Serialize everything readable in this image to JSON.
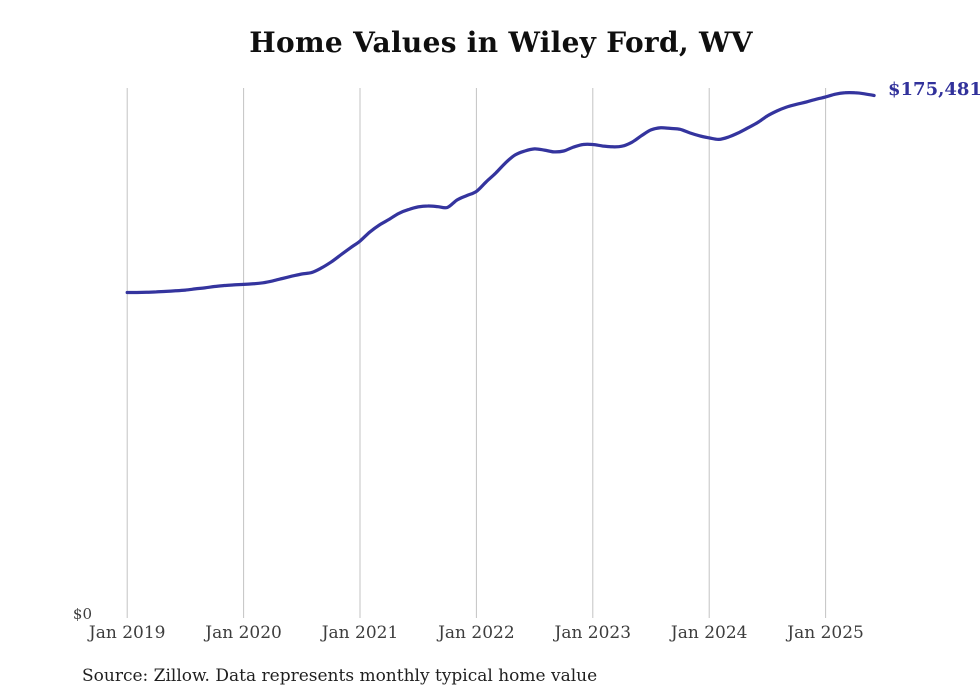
{
  "title": "Home Values in Wiley Ford, WV",
  "end_label": "$175,481",
  "y_axis": {
    "zero_label": "$0"
  },
  "source_note": "Source: Zillow. Data represents monthly typical home value",
  "colors": {
    "line": "#34349e",
    "end_label": "#31319b",
    "grid": "#c3c3c3",
    "title": "#0f0f0f",
    "tick_text": "#3d3d3d",
    "source_text": "#1f1f1f"
  },
  "chart_data": {
    "type": "line",
    "title": "Home Values in Wiley Ford, WV",
    "xlabel": "",
    "ylabel": "",
    "x_start": "2019-01",
    "x_interval": "monthly",
    "x_end": "2025-06",
    "x_tick_labels": [
      "Jan 2019",
      "Jan 2020",
      "Jan 2021",
      "Jan 2022",
      "Jan 2023",
      "Jan 2024",
      "Jan 2025"
    ],
    "y_tick_labels": [
      "$0"
    ],
    "ylim": [
      0,
      178000
    ],
    "grid": "vertical-only",
    "legend": "none",
    "end_annotation": "$175,481",
    "final_value": 175481,
    "series": [
      {
        "name": "Monthly typical home value",
        "values": [
          109200,
          109200,
          109250,
          109400,
          109550,
          109750,
          110000,
          110400,
          110750,
          111200,
          111550,
          111750,
          111900,
          112100,
          112450,
          113100,
          113900,
          114700,
          115400,
          115900,
          117400,
          119400,
          121800,
          124200,
          126500,
          129500,
          131900,
          133800,
          135800,
          137100,
          138000,
          138300,
          138100,
          137800,
          140300,
          141800,
          143200,
          146400,
          149400,
          152800,
          155500,
          156800,
          157500,
          157100,
          156500,
          156800,
          158100,
          159000,
          159000,
          158500,
          158200,
          158400,
          159700,
          161900,
          163900,
          164600,
          164400,
          164100,
          162900,
          161900,
          161200,
          160700,
          161500,
          162900,
          164600,
          166400,
          168600,
          170300,
          171600,
          172500,
          173300,
          174200,
          175000,
          175900,
          176400,
          176400,
          176050,
          175481
        ]
      }
    ]
  }
}
